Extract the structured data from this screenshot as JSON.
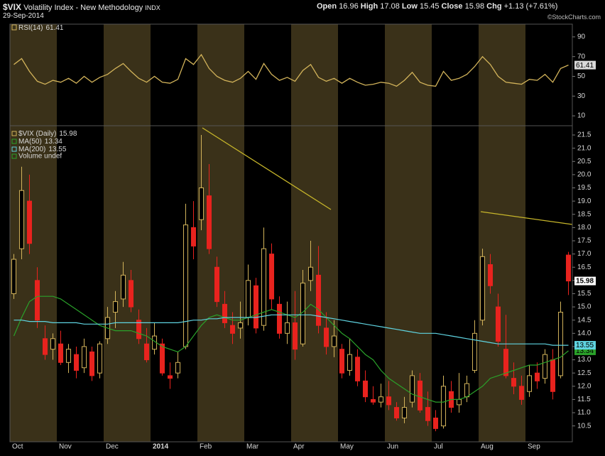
{
  "header": {
    "symbol": "$VIX",
    "title": "Volatility Index - New Methodology",
    "exchange": "INDX",
    "date": "29-Sep-2014",
    "open_label": "Open",
    "high_label": "High",
    "low_label": "Low",
    "close_label": "Close",
    "chg_label": "Chg",
    "chg": "+1.13 (+7.61%)",
    "credit": "©StockCharts.com"
  },
  "chart_data": [
    {
      "type": "line",
      "ylim": [
        0,
        100
      ],
      "yticks": [
        10,
        30,
        50,
        70,
        90
      ],
      "series": [
        {
          "name": "RSI(14)",
          "color": "#d2b35a",
          "values": [
            62,
            68,
            55,
            45,
            42,
            46,
            44,
            48,
            43,
            50,
            44,
            49,
            52,
            58,
            63,
            55,
            48,
            44,
            50,
            44,
            43,
            47,
            68,
            62,
            72,
            58,
            50,
            46,
            44,
            48,
            55,
            47,
            63,
            52,
            46,
            49,
            45,
            56,
            62,
            49,
            45,
            48,
            43,
            48,
            44,
            41,
            42,
            44,
            43,
            40,
            46,
            54,
            44,
            41,
            40,
            55,
            46,
            48,
            52,
            60,
            70,
            62,
            50,
            44,
            43,
            42,
            47,
            46,
            52,
            44,
            58,
            61.41
          ]
        }
      ]
    },
    {
      "type": "candlestick",
      "name": "$VIX (Daily)",
      "volume_label": "Volume undef",
      "up_color": "#d2b35a",
      "down_color": "#e8231e",
      "alternate_shading": true,
      "categories": [
        "Oct",
        null,
        null,
        null,
        null,
        null,
        "Nov",
        null,
        null,
        null,
        null,
        null,
        "Dec",
        null,
        null,
        null,
        null,
        null,
        "2014",
        null,
        null,
        null,
        null,
        null,
        "Feb",
        null,
        null,
        null,
        null,
        null,
        "Mar",
        null,
        null,
        null,
        null,
        null,
        "Apr",
        null,
        null,
        null,
        null,
        null,
        "May",
        null,
        null,
        null,
        null,
        null,
        "Jun",
        null,
        null,
        null,
        null,
        null,
        "Jul",
        null,
        null,
        null,
        null,
        null,
        "Aug",
        null,
        null,
        null,
        null,
        null,
        "Sep",
        null,
        null,
        null,
        null,
        null
      ],
      "open": [
        15.5,
        17.2,
        19.0,
        16.0,
        13.8,
        13.4,
        13.6,
        12.9,
        13.2,
        12.7,
        13.3,
        12.5,
        13.8,
        14.8,
        15.3,
        16.0,
        14.5,
        13.6,
        13.4,
        13.6,
        12.4,
        12.5,
        13.5,
        18.0,
        18.3,
        19.2,
        16.5,
        15.1,
        14.3,
        14.2,
        14.6,
        15.8,
        14.3,
        17.0,
        15.1,
        14.0,
        14.4,
        13.6,
        16.0,
        16.2,
        14.2,
        13.5,
        13.4,
        12.6,
        13.1,
        12.2,
        11.5,
        11.4,
        11.6,
        11.2,
        10.8,
        11.4,
        12.2,
        11.2,
        10.8,
        10.5,
        11.8,
        11.3,
        11.6,
        12.6,
        14.5,
        16.6,
        15.0,
        13.4,
        12.3,
        12.0,
        11.8,
        12.5,
        12.3,
        13.0,
        12.4,
        16.96
      ],
      "high": [
        17.0,
        20.3,
        20.0,
        16.5,
        14.3,
        14.0,
        14.1,
        13.6,
        13.5,
        13.8,
        13.5,
        13.7,
        15.0,
        15.6,
        16.7,
        16.4,
        14.9,
        14.2,
        14.4,
        13.8,
        12.9,
        13.3,
        18.9,
        19.0,
        21.5,
        20.4,
        16.9,
        15.6,
        14.8,
        15.2,
        16.6,
        16.1,
        18.0,
        17.4,
        15.4,
        15.2,
        15.6,
        16.4,
        17.5,
        17.3,
        14.8,
        14.5,
        13.6,
        13.8,
        13.4,
        12.6,
        12.0,
        12.1,
        12.2,
        11.4,
        11.6,
        12.6,
        12.5,
        11.8,
        11.1,
        12.4,
        12.2,
        12.5,
        12.4,
        14.5,
        17.2,
        17.0,
        15.5,
        14.7,
        12.9,
        12.4,
        12.8,
        12.9,
        13.4,
        13.4,
        15.2,
        17.08
      ],
      "low": [
        15.3,
        16.8,
        17.0,
        14.2,
        13.0,
        13.0,
        12.8,
        12.5,
        12.3,
        12.5,
        12.2,
        12.3,
        13.6,
        14.2,
        15.0,
        14.8,
        13.6,
        12.9,
        13.2,
        12.4,
        11.9,
        12.3,
        13.4,
        16.8,
        17.9,
        17.0,
        15.0,
        14.2,
        13.6,
        13.8,
        14.3,
        14.0,
        14.1,
        14.9,
        13.8,
        13.6,
        13.0,
        13.5,
        15.6,
        14.0,
        13.2,
        13.1,
        12.3,
        12.4,
        12.0,
        11.4,
        11.3,
        11.2,
        11.1,
        10.7,
        10.6,
        11.2,
        11.0,
        10.5,
        10.3,
        10.4,
        11.0,
        11.0,
        11.4,
        12.5,
        14.3,
        15.5,
        13.5,
        12.3,
        11.7,
        11.3,
        11.6,
        11.9,
        12.1,
        11.5,
        12.3,
        15.45
      ],
      "close": [
        16.8,
        19.4,
        17.4,
        14.5,
        13.2,
        13.8,
        12.9,
        13.4,
        12.6,
        13.5,
        12.4,
        13.6,
        14.6,
        15.2,
        16.2,
        15.0,
        13.8,
        13.0,
        13.9,
        12.5,
        12.3,
        12.9,
        18.1,
        17.3,
        19.5,
        17.2,
        15.2,
        14.4,
        14.0,
        14.4,
        16.0,
        14.2,
        17.2,
        15.3,
        14.0,
        14.4,
        13.4,
        15.9,
        16.5,
        14.3,
        13.5,
        13.9,
        12.5,
        13.2,
        12.2,
        11.6,
        11.4,
        11.6,
        11.3,
        10.8,
        11.2,
        12.4,
        11.1,
        10.7,
        10.4,
        12.0,
        11.2,
        11.5,
        12.1,
        14.0,
        16.9,
        15.8,
        13.7,
        12.4,
        12.0,
        11.5,
        12.4,
        12.2,
        13.2,
        11.8,
        14.8,
        15.98
      ],
      "series": [
        {
          "name": "MA(50)",
          "color": "#2aa12a",
          "values": [
            13.9,
            14.6,
            15.2,
            15.4,
            15.4,
            15.4,
            15.3,
            15.1,
            14.9,
            14.7,
            14.5,
            14.3,
            14.2,
            14.1,
            14.1,
            14.1,
            14.0,
            13.9,
            13.7,
            13.5,
            13.4,
            13.3,
            13.5,
            13.9,
            14.3,
            14.6,
            14.7,
            14.6,
            14.5,
            14.5,
            14.6,
            14.7,
            14.8,
            14.9,
            14.8,
            14.7,
            14.6,
            14.8,
            15.1,
            14.9,
            14.6,
            14.3,
            14.0,
            13.8,
            13.5,
            13.2,
            13.0,
            12.6,
            12.3,
            12.1,
            11.9,
            11.7,
            11.6,
            11.5,
            11.4,
            11.4,
            11.5,
            11.5,
            11.6,
            11.8,
            12.0,
            12.3,
            12.4,
            12.5,
            12.6,
            12.7,
            12.8,
            12.8,
            12.9,
            13.0,
            13.1,
            13.34
          ]
        },
        {
          "name": "MA(200)",
          "color": "#5fd3e0",
          "values": [
            14.5,
            14.5,
            14.45,
            14.45,
            14.45,
            14.4,
            14.4,
            14.4,
            14.4,
            14.35,
            14.35,
            14.35,
            14.35,
            14.4,
            14.4,
            14.4,
            14.4,
            14.4,
            14.4,
            14.4,
            14.4,
            14.4,
            14.45,
            14.5,
            14.5,
            14.55,
            14.55,
            14.6,
            14.6,
            14.6,
            14.6,
            14.6,
            14.65,
            14.7,
            14.7,
            14.7,
            14.7,
            14.7,
            14.7,
            14.65,
            14.6,
            14.55,
            14.5,
            14.45,
            14.4,
            14.35,
            14.3,
            14.25,
            14.2,
            14.15,
            14.1,
            14.05,
            14.0,
            14.0,
            14.0,
            13.95,
            13.9,
            13.85,
            13.8,
            13.75,
            13.7,
            13.65,
            13.6,
            13.6,
            13.6,
            13.6,
            13.6,
            13.6,
            13.6,
            13.55,
            13.55,
            13.55
          ]
        }
      ],
      "ylim": [
        9.9,
        21.85
      ],
      "yticks": [
        10.5,
        {
          "value": 11,
          "label": "11.0"
        },
        11.5,
        {
          "value": 12,
          "label": "12.0"
        },
        12.5,
        {
          "value": 13,
          "label": "13.0"
        },
        13.5,
        {
          "value": 14,
          "label": "14.0"
        },
        14.5,
        {
          "value": 15,
          "label": "15.0"
        },
        15.5,
        {
          "value": 16,
          "label": "16.0"
        },
        16.5,
        {
          "value": 17,
          "label": "17.0"
        },
        17.5,
        {
          "value": 18,
          "label": "18.0"
        },
        18.5,
        {
          "value": 19,
          "label": "19.0"
        },
        19.5,
        {
          "value": 20,
          "label": "20.0"
        },
        20.5,
        {
          "value": 21,
          "label": "21.0"
        },
        21.5
      ]
    }
  ]
}
